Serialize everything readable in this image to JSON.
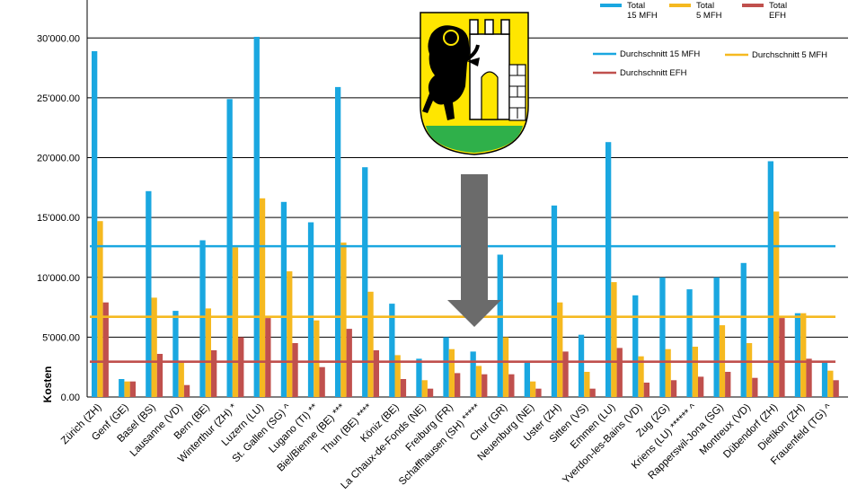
{
  "chart_data": {
    "type": "bar",
    "ylabel": "Kosten",
    "ylim": [
      0,
      32500
    ],
    "yticks": [
      0,
      5000,
      10000,
      15000,
      20000,
      25000,
      30000
    ],
    "ytick_labels": [
      "0.00",
      "5'000.00",
      "10'000.00",
      "15'000.00",
      "20'000.00",
      "25'000.00",
      "30'000.00"
    ],
    "grid": true,
    "legend_position": "top-right",
    "categories": [
      "Zürich (ZH)",
      "Genf (GE)",
      "Basel (BS)",
      "Lausanne (VD)",
      "Bern (BE)",
      "Winterthur (ZH) *",
      "Luzern (LU)",
      "St. Gallen (SG) ^",
      "Lugano (TI) **",
      "Biel/Bienne (BE) ***",
      "Thun (BE) ****",
      "Köniz (BE)",
      "La Chaux-de-Fonds (NE)",
      "Freiburg (FR)",
      "Schaffhausen (SH) *****",
      "Chur (GR)",
      "Neuenburg (NE)",
      "Uster (ZH)",
      "Sitten (VS)",
      "Emmen (LU)",
      "Yverdon-les-Bains (VD)",
      "Zug (ZG)",
      "Kriens (LU) ****** ^",
      "Rapperswil-Jona (SG)",
      "Montreux (VD)",
      "Dübendorf (ZH)",
      "Dietikon (ZH)",
      "Frauenfeld (TG) ^"
    ],
    "series": [
      {
        "name": "Total 15 MFH",
        "legend_lines": [
          "Total",
          "15 MFH"
        ],
        "color": "#1aa7e0",
        "values": [
          28900,
          1500,
          17200,
          7200,
          13100,
          24900,
          30100,
          16300,
          14600,
          25900,
          19200,
          7800,
          3200,
          5000,
          3800,
          11900,
          2900,
          16000,
          5200,
          21300,
          8500,
          10000,
          9000,
          10000,
          11200,
          19700,
          7000,
          3000
        ]
      },
      {
        "name": "Total 5 MFH",
        "legend_lines": [
          "Total",
          "5 MFH"
        ],
        "color": "#f5b920",
        "values": [
          14700,
          1300,
          8300,
          3000,
          7400,
          12500,
          16600,
          10500,
          6400,
          12900,
          8800,
          3500,
          1400,
          4000,
          2600,
          5000,
          1300,
          7900,
          2100,
          9600,
          3400,
          4000,
          4200,
          6000,
          4500,
          15500,
          7000,
          2200
        ]
      },
      {
        "name": "Total EFH",
        "legend_lines": [
          "Total",
          "EFH"
        ],
        "color": "#c0504d",
        "values": [
          7900,
          1300,
          3600,
          1000,
          3900,
          5000,
          6600,
          4500,
          2500,
          5700,
          3900,
          1500,
          700,
          2000,
          1900,
          1900,
          700,
          3800,
          700,
          4100,
          1200,
          1400,
          1700,
          2100,
          1600,
          6600,
          3200,
          1400
        ]
      }
    ],
    "averages": [
      {
        "name": "Durchschnitt 15 MFH",
        "value": 12600,
        "color": "#1aa7e0"
      },
      {
        "name": "Durchschnitt 5 MFH",
        "value": 6700,
        "color": "#f5b920"
      },
      {
        "name": "Durchschnitt EFH",
        "value": 2950,
        "color": "#c0504d"
      }
    ],
    "annotation_arrow": {
      "color": "#6b6b6b",
      "direction": "down",
      "points_to": "Schaffhausen (SH) *****"
    }
  },
  "emblem": {
    "name": "Schaffhausen coat of arms",
    "colors": {
      "field": "#ffe600",
      "ram": "#000000",
      "tower": "#ffffff",
      "ground": "#2fb04a"
    }
  }
}
